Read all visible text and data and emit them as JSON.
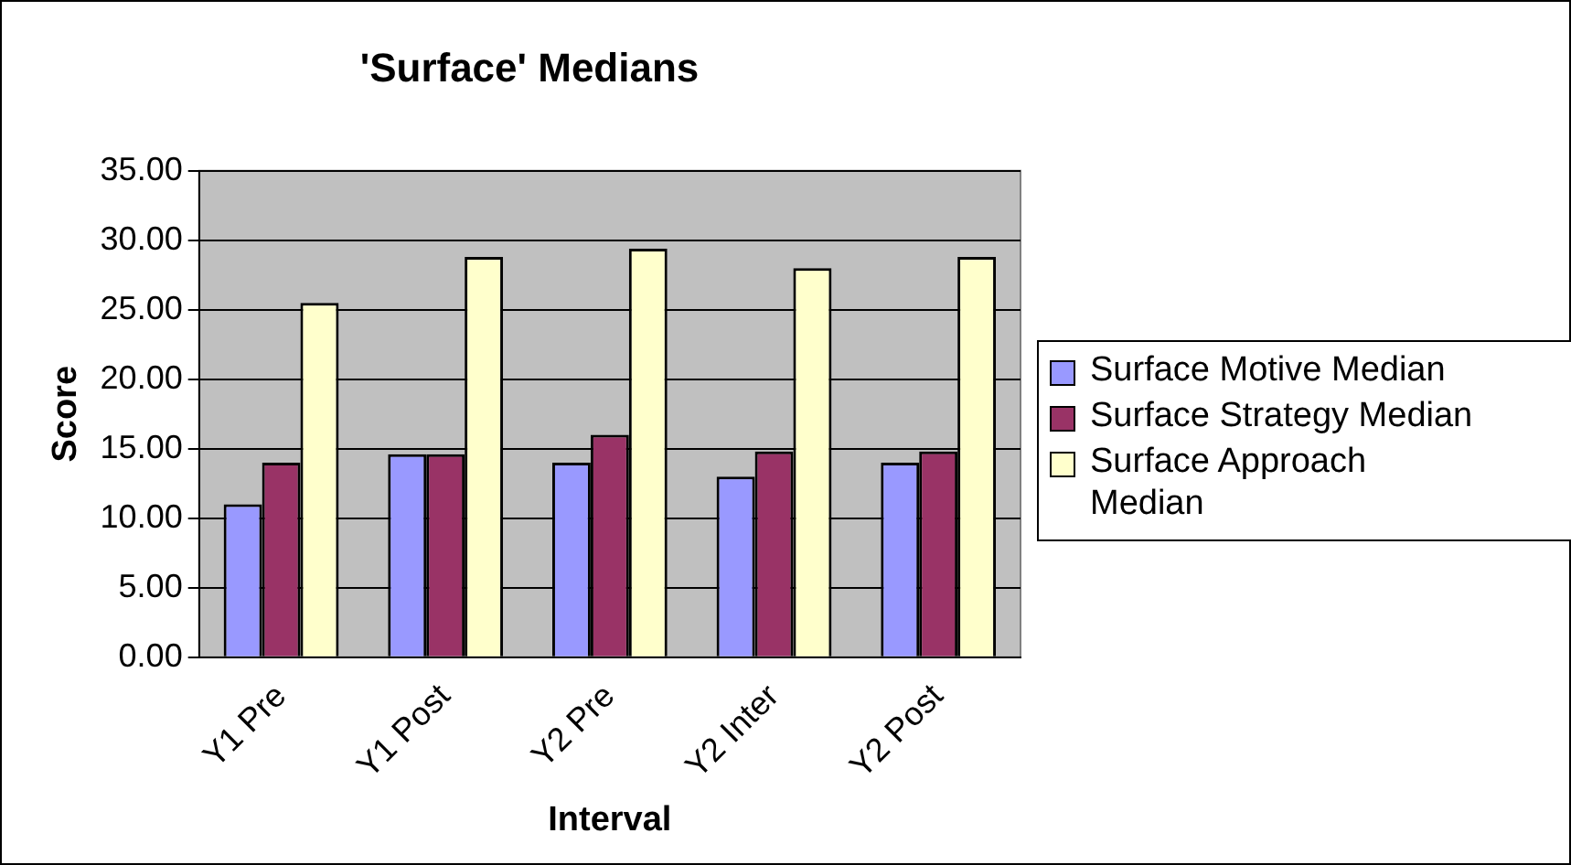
{
  "chart_data": {
    "type": "bar",
    "title": "'Surface' Medians",
    "xlabel": "Interval",
    "ylabel": "Score",
    "categories": [
      "Y1 Pre",
      "Y1 Post",
      "Y2 Pre",
      "Y2 Inter",
      "Y2 Post"
    ],
    "series": [
      {
        "name": "Surface Motive Median",
        "color": "#9999ff",
        "values": [
          11.0,
          14.6,
          14.0,
          13.0,
          14.0
        ]
      },
      {
        "name": "Surface Strategy Median",
        "color": "#993366",
        "values": [
          14.0,
          14.6,
          16.0,
          14.8,
          14.8
        ]
      },
      {
        "name": "Surface Approach Median",
        "color": "#ffffcc",
        "values": [
          25.5,
          28.8,
          29.4,
          28.0,
          28.8
        ]
      }
    ],
    "ylim": [
      0,
      35
    ],
    "yticks": [
      {
        "value": 0,
        "label": "0.00"
      },
      {
        "value": 5,
        "label": "5.00"
      },
      {
        "value": 10,
        "label": "10.00"
      },
      {
        "value": 15,
        "label": "15.00"
      },
      {
        "value": 20,
        "label": "20.00"
      },
      {
        "value": 25,
        "label": "25.00"
      },
      {
        "value": 30,
        "label": "30.00"
      },
      {
        "value": 35,
        "label": "35.00"
      }
    ],
    "grid": "y",
    "legend": "right"
  }
}
